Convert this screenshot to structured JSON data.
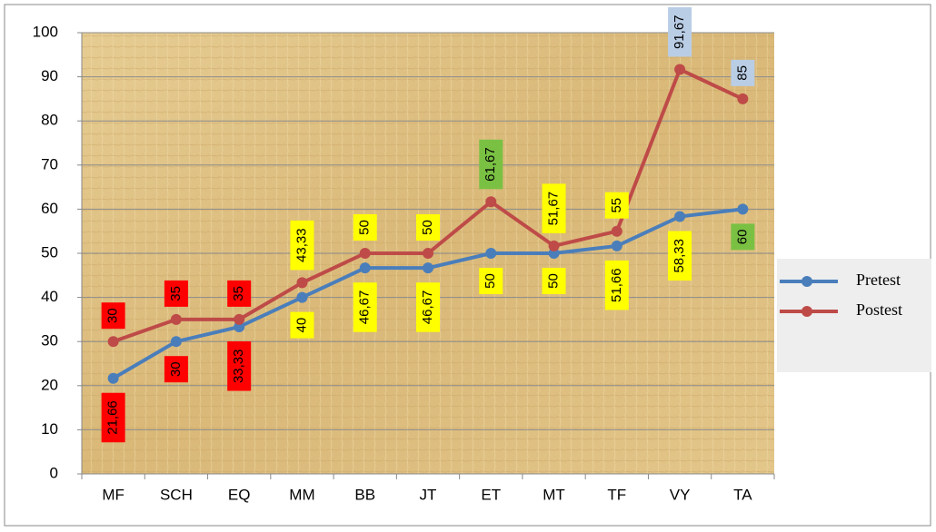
{
  "chart_data": {
    "type": "line",
    "categories": [
      "MF",
      "SCH",
      "EQ",
      "MM",
      "BB",
      "JT",
      "ET",
      "MT",
      "TF",
      "VY",
      "TA"
    ],
    "series": [
      {
        "name": "Pretest",
        "color": "#4a7ebb",
        "values": [
          21.66,
          30,
          33.33,
          40,
          46.67,
          46.67,
          50,
          50,
          51.66,
          58.33,
          60
        ],
        "value_labels": [
          "21,66",
          "30",
          "33,33",
          "40",
          "46,67",
          "46,67",
          "50",
          "50",
          "51,66",
          "58,33",
          "60"
        ],
        "label_colors": [
          "#ff0000",
          "#ff0000",
          "#ff0000",
          "#ffff00",
          "#ffff00",
          "#ffff00",
          "#ffff00",
          "#ffff00",
          "#ffff00",
          "#ffff00",
          "#7ac143"
        ]
      },
      {
        "name": "Postest",
        "color": "#be4b48",
        "values": [
          30,
          35,
          35,
          43.33,
          50,
          50,
          61.67,
          51.67,
          55,
          91.67,
          85
        ],
        "value_labels": [
          "30",
          "35",
          "35",
          "43,33",
          "50",
          "50",
          "61,67",
          "51,67",
          "55",
          "91,67",
          "85"
        ],
        "label_colors": [
          "#ff0000",
          "#ff0000",
          "#ff0000",
          "#ffff00",
          "#ffff00",
          "#ffff00",
          "#7ac143",
          "#ffff00",
          "#ffff00",
          "#b9cde5",
          "#b9cde5"
        ]
      }
    ],
    "ylim": [
      0,
      100
    ],
    "yticks": [
      0,
      10,
      20,
      30,
      40,
      50,
      60,
      70,
      80,
      90,
      100
    ],
    "grid": true,
    "legend": "right"
  }
}
